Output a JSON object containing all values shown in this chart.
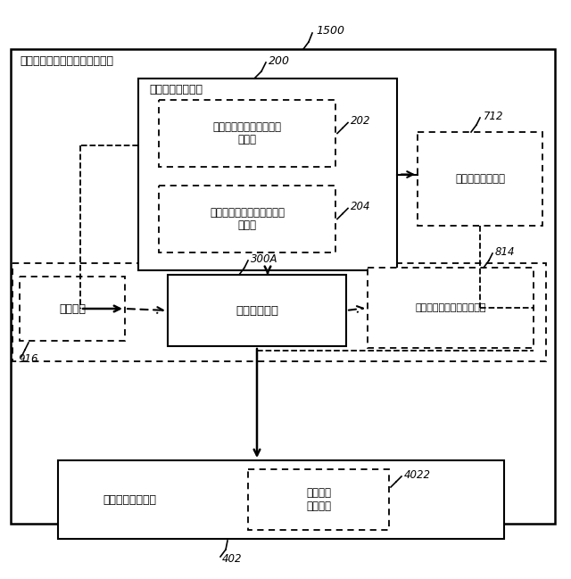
{
  "fig_width": 6.4,
  "fig_height": 6.49,
  "bg_color": "#ffffff",
  "font_name": "DejaVu Sans",
  "outer_label": "ダイアログ向上器コントローラ",
  "ref_1500": "1500",
  "ref_200": "200",
  "ref_202": "202",
  "ref_204": "204",
  "ref_712": "712",
  "ref_814": "814",
  "ref_300A": "300A",
  "ref_916": "916",
  "ref_402": "402",
  "ref_4022": "4022",
  "lbl_audio_cls": "オーディオ分類器",
  "lbl_content_cls": "オーディオ・コンテンツ\n分類器",
  "lbl_context_cls": "オーディオ・コンテキスト\n分類器",
  "lbl_type_smooth": "型平滑化ユニット",
  "lbl_timer": "タイマー",
  "lbl_adjust": "調整ユニット",
  "lbl_param_smooth": "パラメータ平滑化ユニット",
  "lbl_dialog_enh": "ダイアログ向上器",
  "lbl_min_track": "最小追跡\nユニット"
}
